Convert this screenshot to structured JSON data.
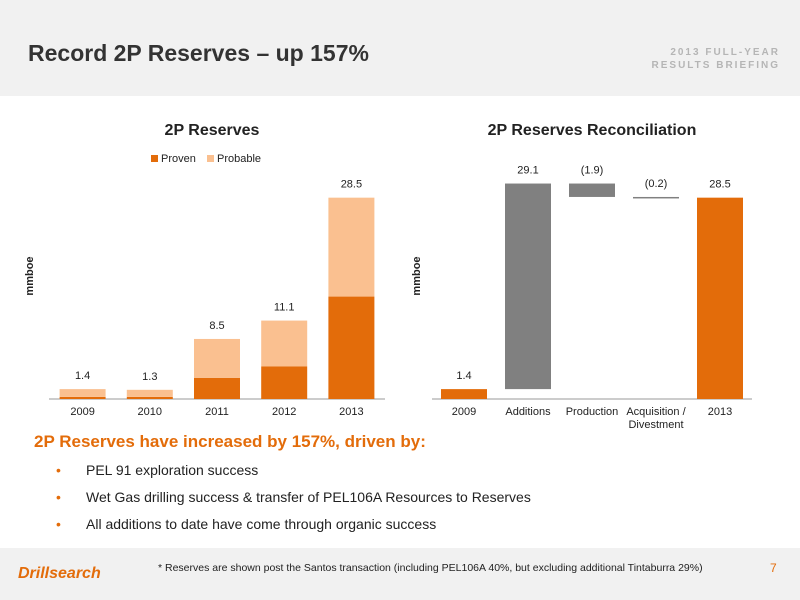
{
  "header": {
    "title": "Record 2P Reserves – up 157%",
    "briefing_line1": "2013 FULL-YEAR",
    "briefing_line2": "RESULTS BRIEFING"
  },
  "colors": {
    "accent": "#e36c0a",
    "proven": "#e36c0a",
    "probable": "#fac090",
    "reconciliation_grey": "#808080",
    "background_band": "#f1f1f1"
  },
  "chart_data": [
    {
      "type": "bar",
      "stacked": true,
      "title": "2P Reserves",
      "ylabel": "mmboe",
      "xlabel": "",
      "categories": [
        "2009",
        "2010",
        "2011",
        "2012",
        "2013"
      ],
      "series": [
        {
          "name": "Proven",
          "values": [
            0.3,
            0.3,
            3.0,
            4.6,
            14.5
          ]
        },
        {
          "name": "Probable",
          "values": [
            1.1,
            1.0,
            5.5,
            6.5,
            14.0
          ]
        }
      ],
      "totals": [
        "1.4",
        "1.3",
        "8.5",
        "11.1",
        "28.5"
      ],
      "ylim": [
        0,
        31
      ],
      "legend": "top-center",
      "grid": false
    },
    {
      "type": "bar",
      "subtype": "waterfall",
      "title": "2P Reserves Reconciliation",
      "ylabel": "mmboe",
      "xlabel": "",
      "categories": [
        "2009",
        "Additions",
        "Production",
        "Acquisition / Divestment",
        "2013"
      ],
      "tick_lines": [
        [
          "2009"
        ],
        [
          "Additions"
        ],
        [
          "Production"
        ],
        [
          "Acquisition /",
          "Divestment"
        ],
        [
          "2013"
        ]
      ],
      "steps": [
        {
          "kind": "total",
          "start": 0,
          "end": 1.4,
          "label": "1.4"
        },
        {
          "kind": "change",
          "start": 1.4,
          "end": 30.5,
          "label": "29.1"
        },
        {
          "kind": "change",
          "start": 30.5,
          "end": 28.6,
          "label": "(1.9)"
        },
        {
          "kind": "change",
          "start": 28.6,
          "end": 28.4,
          "label": "(0.2)"
        },
        {
          "kind": "total",
          "start": 0,
          "end": 28.5,
          "label": "28.5"
        }
      ],
      "ylim": [
        0,
        31
      ],
      "grid": false
    }
  ],
  "content": {
    "headline": "2P Reserves have increased by 157%, driven by:",
    "bullets": [
      "PEL 91 exploration success",
      "Wet Gas drilling success & transfer of PEL106A Resources to Reserves",
      "All additions to date have come through organic success"
    ]
  },
  "footer": {
    "logo": "Drillsearch",
    "footnote": "* Reserves are shown post the Santos transaction (including PEL106A 40%, but excluding  additional Tintaburra 29%)",
    "page_number": "7"
  }
}
